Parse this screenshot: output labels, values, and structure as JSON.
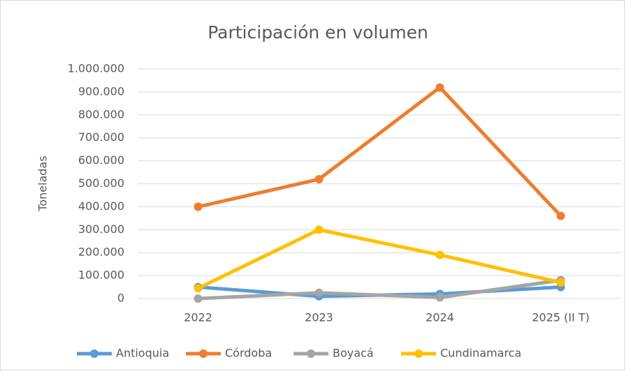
{
  "chart_data": {
    "type": "line",
    "title": "Participación en volumen",
    "y_label": "Toneladas",
    "categories": [
      "2022",
      "2023",
      "2024",
      "2025 (II T)"
    ],
    "series": [
      {
        "name": "Antioquia",
        "color": "#5b9bd5",
        "values": [
          50000,
          10000,
          20000,
          50000
        ]
      },
      {
        "name": "Córdoba",
        "color": "#ed7d31",
        "values": [
          400000,
          520000,
          920000,
          360000
        ]
      },
      {
        "name": "Boyacá",
        "color": "#a5a5a5",
        "values": [
          0,
          25000,
          5000,
          80000
        ]
      },
      {
        "name": "Cundinamarca",
        "color": "#ffc000",
        "values": [
          45000,
          300000,
          190000,
          70000
        ]
      }
    ],
    "ylim": [
      0,
      1000000
    ],
    "yticks": [
      0,
      {
        "value": 100000,
        "label": "100.000"
      },
      {
        "value": 200000,
        "label": "200.000"
      },
      {
        "value": 300000,
        "label": "300.000"
      },
      {
        "value": 400000,
        "label": "400.000"
      },
      {
        "value": 500000,
        "label": "500.000"
      },
      {
        "value": 600000,
        "label": "600.000"
      },
      {
        "value": 700000,
        "label": "700.000"
      },
      {
        "value": 800000,
        "label": "800.000"
      },
      {
        "value": 900000,
        "label": "900.000"
      },
      {
        "value": 1000000,
        "label": "1.000.000"
      }
    ],
    "grid": true,
    "legend": "bottom"
  }
}
